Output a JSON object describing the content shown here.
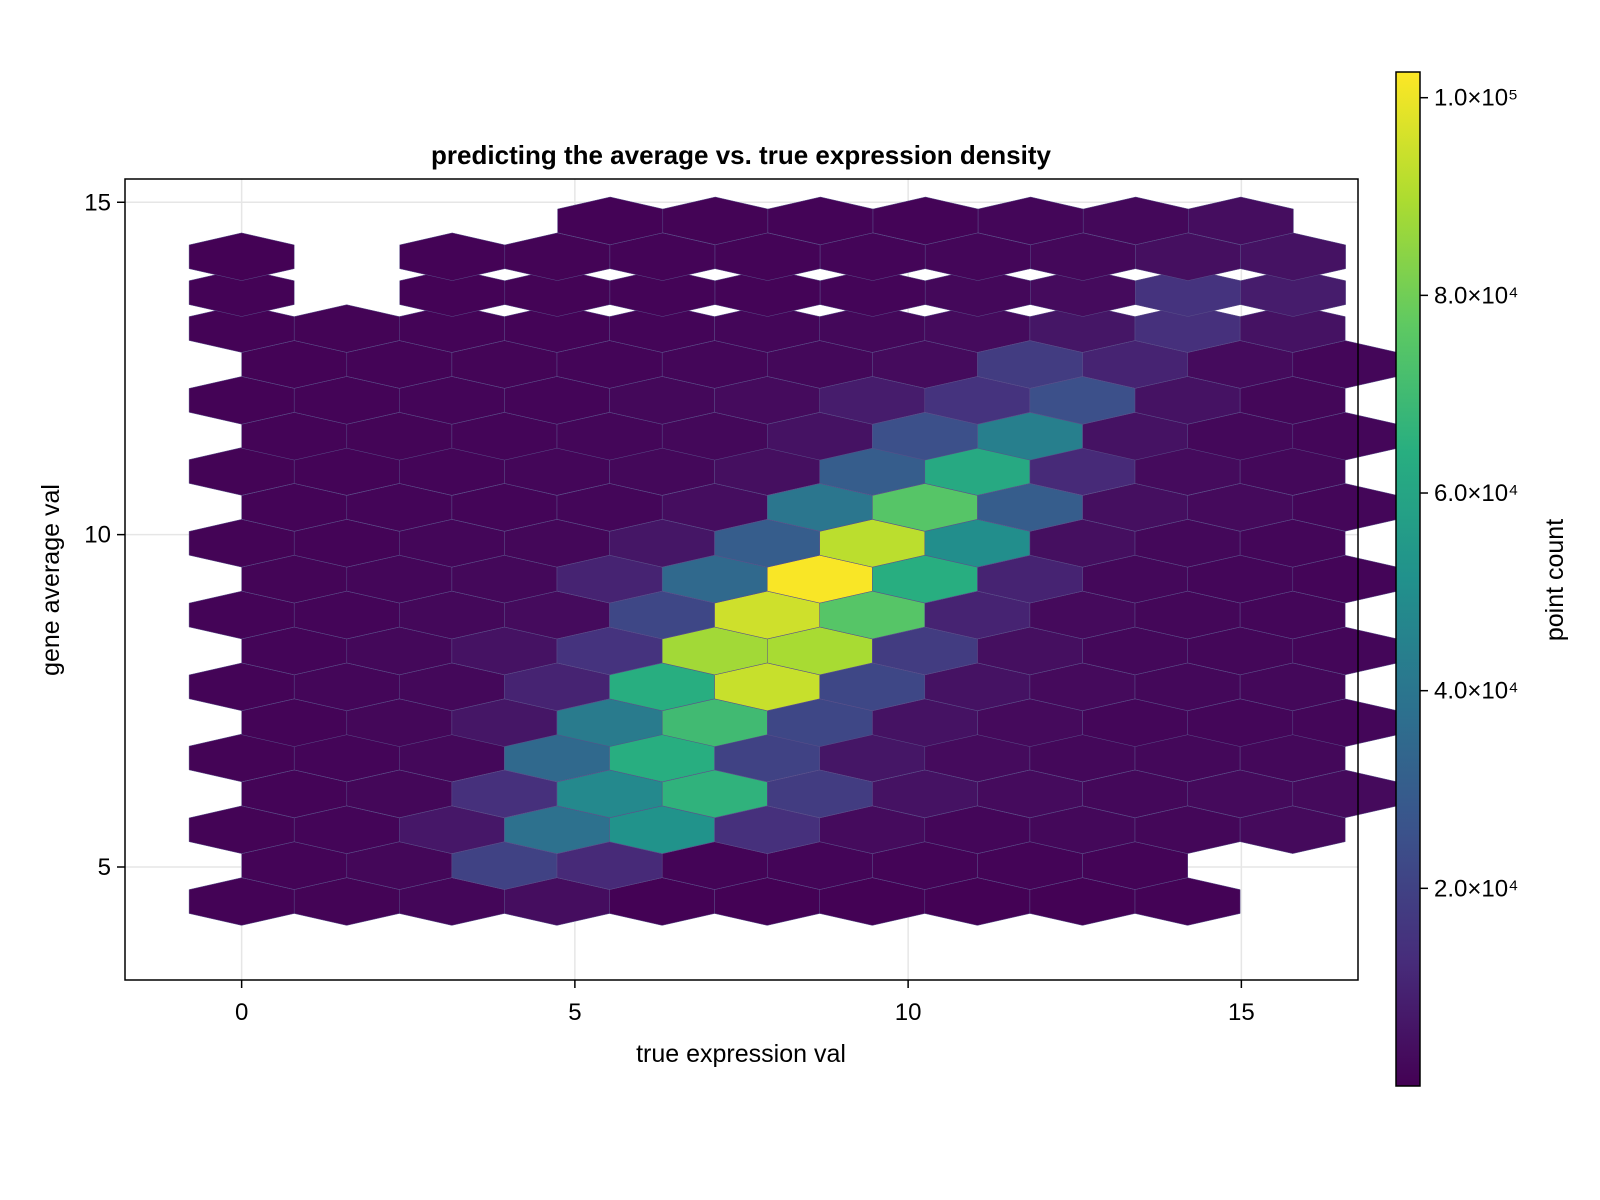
{
  "chart_data": {
    "type": "heatmap",
    "subtype": "hexbin",
    "title": "predicting the average vs. true expression density",
    "xlabel": "true expression val",
    "ylabel": "gene average val",
    "xlim": [
      -1.75,
      16.75
    ],
    "ylim": [
      3.3,
      15.35
    ],
    "xticks": [
      0,
      5,
      10,
      15
    ],
    "yticks": [
      5,
      10,
      15
    ],
    "grid": true,
    "colorbar": {
      "label": "point count",
      "colormap": "viridis",
      "range": [
        0,
        102600
      ],
      "ticks": [
        20000,
        40000,
        60000,
        80000,
        100000
      ],
      "tick_labels": [
        "2.0×10⁴",
        "4.0×10⁴",
        "6.0×10⁴",
        "8.0×10⁴",
        "1.0×10⁵"
      ]
    },
    "hex_grid": {
      "x_spacing": 1.577,
      "y_spacing": 0.538,
      "first_row_y": 4.48,
      "rows": [
        {
          "x0": 0.0,
          "counts": [
            600,
            800,
            1500,
            3500,
            300,
            300,
            200,
            400,
            400,
            700
          ]
        },
        {
          "x0": 0.79,
          "counts": [
            900,
            1800,
            20000,
            12000,
            1000,
            1200,
            1000,
            900,
            1000
          ]
        },
        {
          "x0": 0.0,
          "counts": [
            800,
            1200,
            6500,
            38000,
            52000,
            14000,
            3000,
            1500,
            2000,
            1800,
            2500
          ]
        },
        {
          "x0": 0.79,
          "counts": [
            1000,
            1800,
            14000,
            48000,
            66000,
            18000,
            5000,
            3000,
            2000,
            2500,
            2500
          ]
        },
        {
          "x0": 0.0,
          "counts": [
            800,
            1200,
            2000,
            35000,
            64000,
            20000,
            6000,
            3000,
            2000,
            2000,
            2000
          ]
        },
        {
          "x0": 0.79,
          "counts": [
            1000,
            1800,
            6000,
            42000,
            70000,
            22000,
            5000,
            2500,
            1500,
            1500,
            1500
          ]
        },
        {
          "x0": 0.0,
          "counts": [
            900,
            1500,
            2000,
            10000,
            64000,
            94000,
            22000,
            5000,
            2500,
            2000,
            2000
          ]
        },
        {
          "x0": 0.79,
          "counts": [
            1200,
            2000,
            5000,
            15000,
            88000,
            89000,
            18000,
            4000,
            2000,
            1800,
            1600
          ]
        },
        {
          "x0": 0.0,
          "counts": [
            900,
            1200,
            2000,
            3000,
            22000,
            95000,
            75000,
            10000,
            2500,
            1800,
            1500
          ]
        },
        {
          "x0": 0.79,
          "counts": [
            1100,
            1500,
            2000,
            10000,
            35000,
            102000,
            64000,
            10000,
            2000,
            1500,
            1200
          ]
        },
        {
          "x0": 0.0,
          "counts": [
            800,
            1000,
            1500,
            1800,
            6000,
            30000,
            92000,
            50000,
            4000,
            2000,
            1500
          ]
        },
        {
          "x0": 0.79,
          "counts": [
            1000,
            1200,
            1300,
            1500,
            3500,
            40000,
            75000,
            30000,
            4000,
            2500,
            1500
          ]
        },
        {
          "x0": 0.0,
          "counts": [
            800,
            1000,
            1200,
            1500,
            2000,
            4000,
            30000,
            62000,
            12000,
            3000,
            2000
          ]
        },
        {
          "x0": 0.79,
          "counts": [
            900,
            1100,
            1300,
            1500,
            2000,
            5000,
            25000,
            44000,
            5000,
            2000,
            1500
          ]
        },
        {
          "x0": 0.0,
          "counts": [
            700,
            1000,
            1200,
            1300,
            2000,
            3000,
            8000,
            15000,
            25000,
            5000,
            1800
          ]
        },
        {
          "x0": 0.79,
          "counts": [
            700,
            900,
            1100,
            1300,
            1500,
            2000,
            3000,
            18000,
            10000,
            3000,
            1500
          ]
        },
        {
          "x0": 0.0,
          "counts": [
            600,
            800,
            900,
            1000,
            1200,
            1500,
            2000,
            3000,
            6000,
            14000,
            5000
          ]
        },
        {
          "x0": 3.16,
          "counts": [
            700,
            800,
            900,
            1000,
            1200,
            2000,
            3000,
            15000,
            8000
          ]
        },
        {
          "x0": 0.0,
          "counts": [
            500
          ]
        },
        {
          "x0": 3.16,
          "counts": [
            600,
            800,
            900,
            1000,
            1200,
            1500,
            2000,
            4000,
            5000
          ]
        },
        {
          "x0": 0.0,
          "counts": [
            400
          ]
        },
        {
          "x0": 5.53,
          "counts": [
            700,
            800,
            900,
            1000,
            1500,
            2000,
            3500
          ]
        }
      ]
    }
  }
}
